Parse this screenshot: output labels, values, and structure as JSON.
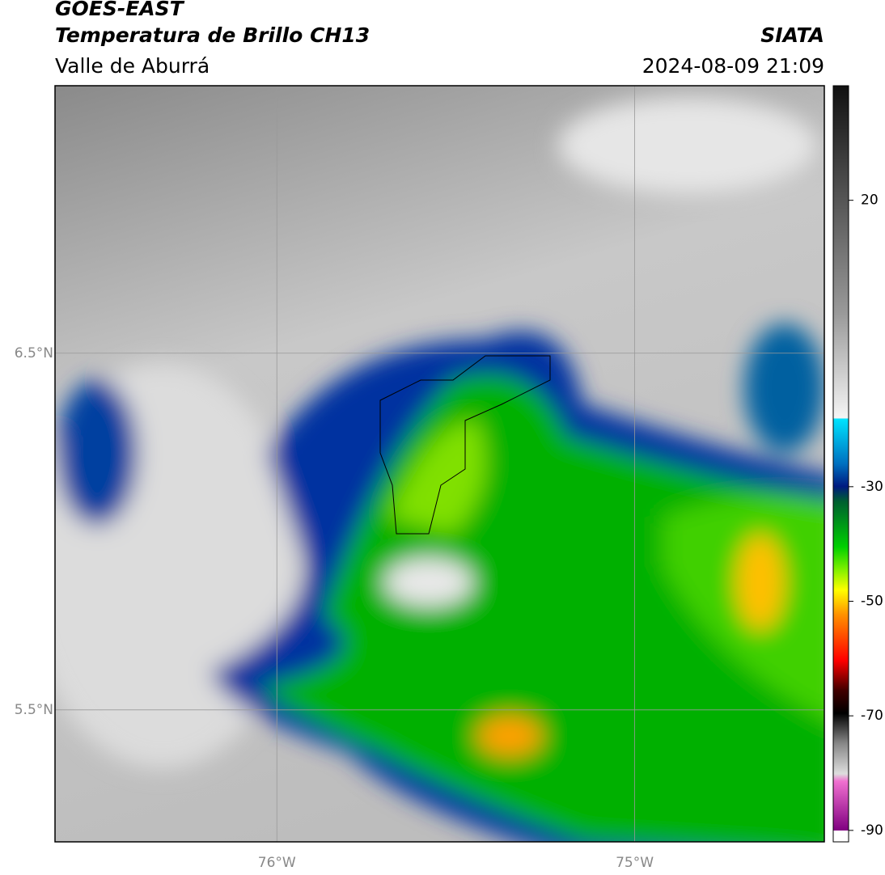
{
  "header": {
    "title": "GOES-EAST",
    "subtitle": "Temperatura de Brillo CH13",
    "region": "Valle de Aburrá",
    "source": "SIATA",
    "timestamp": "2024-08-09 21:09"
  },
  "map": {
    "xlim": [
      -76.62,
      -74.47
    ],
    "ylim": [
      5.13,
      7.25
    ],
    "xticks": [
      {
        "value": -76,
        "label": "76°W"
      },
      {
        "value": -75,
        "label": "75°W"
      }
    ],
    "yticks": [
      {
        "value": 6.5,
        "label": "6.5°N"
      },
      {
        "value": 5.5,
        "label": "5.5°N"
      }
    ],
    "grid": true
  },
  "colorbar": {
    "lim": [
      -92,
      40
    ],
    "ticks": [
      20,
      -30,
      -50,
      -70,
      -90
    ]
  }
}
